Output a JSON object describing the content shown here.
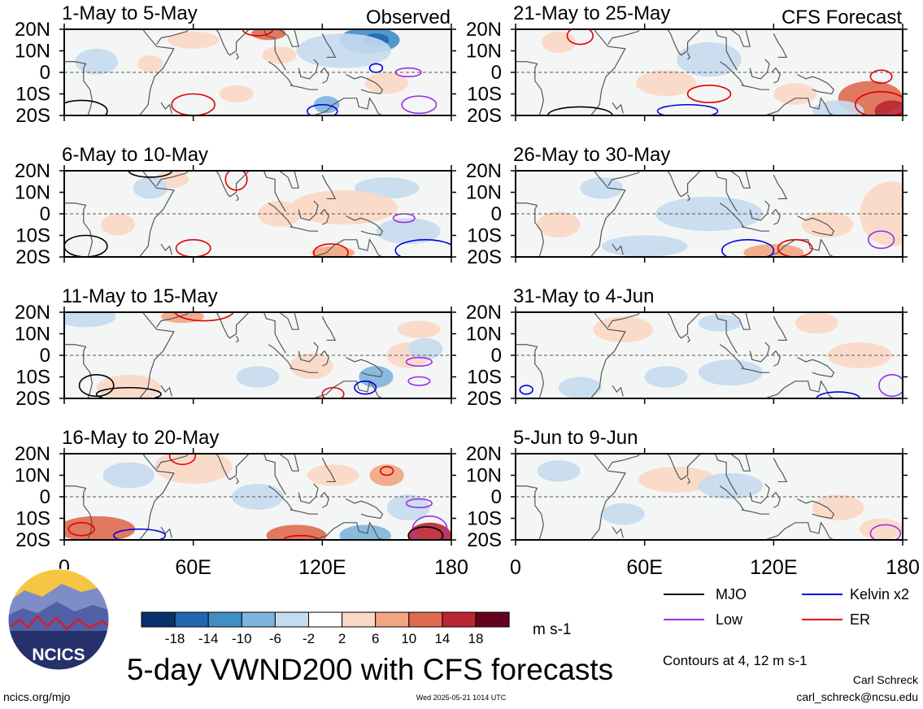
{
  "colors": {
    "colorbar": [
      "#08306b",
      "#1f68b0",
      "#3f8fc5",
      "#7db5dc",
      "#c5dcef",
      "#ffffff",
      "#fbd8c5",
      "#f3a582",
      "#de6b4f",
      "#bb2533",
      "#67001f"
    ],
    "mjo": "#000000",
    "kelvin": "#0000e0",
    "low": "#9a30e6",
    "er": "#e00000",
    "land_outline": "#555555"
  },
  "header": {
    "left_label": "Observed",
    "right_label": "CFS Forecast"
  },
  "chart_data": {
    "type": "heatmap",
    "variable": "VWND200",
    "panels": [
      {
        "period": "1-May to 5-May",
        "group": "Observed"
      },
      {
        "period": "6-May to 10-May",
        "group": "Observed"
      },
      {
        "period": "11-May to 15-May",
        "group": "Observed"
      },
      {
        "period": "16-May to 20-May",
        "group": "Observed"
      },
      {
        "period": "21-May to 25-May",
        "group": "CFS Forecast"
      },
      {
        "period": "26-May to 30-May",
        "group": "CFS Forecast"
      },
      {
        "period": "31-May to 4-Jun",
        "group": "CFS Forecast"
      },
      {
        "period": "5-Jun to 9-Jun",
        "group": "CFS Forecast"
      }
    ],
    "y_ticks": [
      "20N",
      "10N",
      "0",
      "10S",
      "20S"
    ],
    "x_ticks": [
      "0",
      "60E",
      "120E",
      "180"
    ],
    "xlim": [
      0,
      180
    ],
    "ylim": [
      -20,
      20
    ],
    "colorbar": {
      "levels": [
        "-18",
        "-14",
        "-10",
        "-6",
        "-2",
        "2",
        "6",
        "10",
        "14",
        "18"
      ],
      "units": "m s-1"
    },
    "legend": [
      {
        "label": "MJO",
        "color_key": "mjo"
      },
      {
        "label": "Kelvin x2",
        "color_key": "kelvin"
      },
      {
        "label": "Low",
        "color_key": "low"
      },
      {
        "label": "ER",
        "color_key": "er"
      }
    ],
    "contour_note": "Contours at 4, 12 m s-1"
  },
  "footer": {
    "title": "5-day VWND200 with CFS forecasts",
    "logo_text": "NCICS",
    "url": "ncics.org/mjo",
    "timestamp": "Wed 2025-05-21 1014 UTC",
    "author": "Carl Schreck",
    "email": "carl_schreck@ncsu.edu"
  }
}
